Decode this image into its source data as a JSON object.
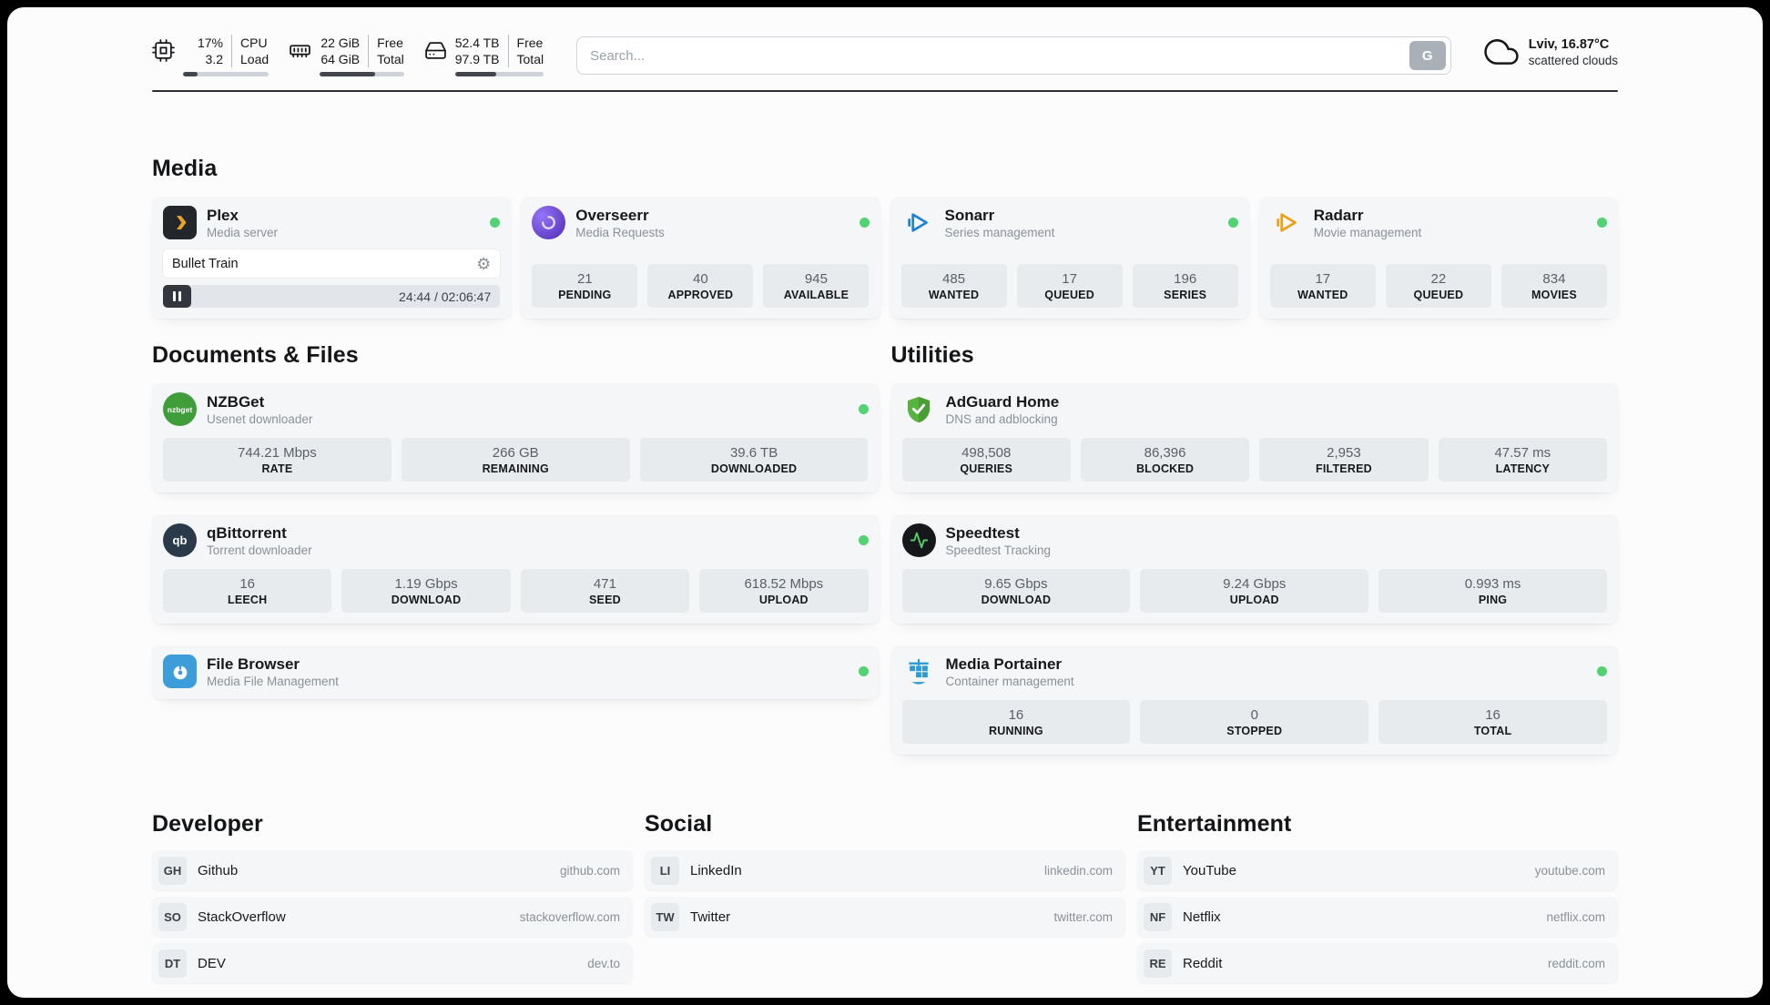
{
  "colors": {
    "status_online": "#52d273",
    "plex_gold": "#e8a624",
    "overseerr_purple": "#6741d9",
    "sonarr_blue": "#1e81d3",
    "radarr_amber": "#eda215",
    "nzbget_green": "#3f9e3a",
    "filebrowser_blue": "#3d9ddb",
    "adguard_green": "#57b33e",
    "speedtest_pulse": "#51cf66",
    "portainer_blue": "#2d9bd8"
  },
  "icons": {
    "gear_glyph": "⚙",
    "nzbget_icon_text": "nzbget",
    "qbittorrent_icon_text": "qb"
  },
  "topbar": {
    "cpu": {
      "value_top": "17%",
      "value_bottom": "3.2",
      "label_top": "CPU",
      "label_bottom": "Load",
      "progress_pct": 17
    },
    "memory": {
      "value_top": "22 GiB",
      "value_bottom": "64 GiB",
      "label_top": "Free",
      "label_bottom": "Total",
      "progress_pct": 66
    },
    "disk": {
      "value_top": "52.4 TB",
      "value_bottom": "97.9 TB",
      "label_top": "Free",
      "label_bottom": "Total",
      "progress_pct": 47
    },
    "search": {
      "placeholder": "Search...",
      "engine_label": "G"
    },
    "weather": {
      "location_temp": "Lviv, 16.87°C",
      "condition": "scattered clouds"
    }
  },
  "sections": {
    "media": {
      "title": "Media",
      "apps": [
        {
          "name": "Plex",
          "desc": "Media server",
          "status": "online",
          "now_playing": {
            "title": "Bullet Train",
            "time": "24:44 / 02:06:47"
          }
        },
        {
          "name": "Overseerr",
          "desc": "Media Requests",
          "status": "online",
          "stats": [
            {
              "value": "21",
              "label": "PENDING"
            },
            {
              "value": "40",
              "label": "APPROVED"
            },
            {
              "value": "945",
              "label": "AVAILABLE"
            }
          ]
        },
        {
          "name": "Sonarr",
          "desc": "Series management",
          "status": "online",
          "stats": [
            {
              "value": "485",
              "label": "WANTED"
            },
            {
              "value": "17",
              "label": "QUEUED"
            },
            {
              "value": "196",
              "label": "SERIES"
            }
          ]
        },
        {
          "name": "Radarr",
          "desc": "Movie management",
          "status": "online",
          "stats": [
            {
              "value": "17",
              "label": "WANTED"
            },
            {
              "value": "22",
              "label": "QUEUED"
            },
            {
              "value": "834",
              "label": "MOVIES"
            }
          ]
        }
      ]
    },
    "documents": {
      "title": "Documents & Files",
      "apps": [
        {
          "name": "NZBGet",
          "desc": "Usenet downloader",
          "status": "online",
          "stats": [
            {
              "value": "744.21 Mbps",
              "label": "RATE"
            },
            {
              "value": "266 GB",
              "label": "REMAINING"
            },
            {
              "value": "39.6 TB",
              "label": "DOWNLOADED"
            }
          ]
        },
        {
          "name": "qBittorrent",
          "desc": "Torrent downloader",
          "status": "online",
          "stats": [
            {
              "value": "16",
              "label": "LEECH"
            },
            {
              "value": "1.19 Gbps",
              "label": "DOWNLOAD"
            },
            {
              "value": "471",
              "label": "SEED"
            },
            {
              "value": "618.52 Mbps",
              "label": "UPLOAD"
            }
          ]
        },
        {
          "name": "File Browser",
          "desc": "Media File Management",
          "status": "online",
          "stats": []
        }
      ]
    },
    "utilities": {
      "title": "Utilities",
      "apps": [
        {
          "name": "AdGuard Home",
          "desc": "DNS and adblocking",
          "stats": [
            {
              "value": "498,508",
              "label": "QUERIES"
            },
            {
              "value": "86,396",
              "label": "BLOCKED"
            },
            {
              "value": "2,953",
              "label": "FILTERED"
            },
            {
              "value": "47.57 ms",
              "label": "LATENCY"
            }
          ]
        },
        {
          "name": "Speedtest",
          "desc": "Speedtest Tracking",
          "stats": [
            {
              "value": "9.65 Gbps",
              "label": "DOWNLOAD"
            },
            {
              "value": "9.24 Gbps",
              "label": "UPLOAD"
            },
            {
              "value": "0.993 ms",
              "label": "PING"
            }
          ]
        },
        {
          "name": "Media Portainer",
          "desc": "Container management",
          "status": "online",
          "stats": [
            {
              "value": "16",
              "label": "RUNNING"
            },
            {
              "value": "0",
              "label": "STOPPED"
            },
            {
              "value": "16",
              "label": "TOTAL"
            }
          ]
        }
      ]
    },
    "bookmarks": [
      {
        "title": "Developer",
        "items": [
          {
            "abbrev": "GH",
            "name": "Github",
            "url": "github.com"
          },
          {
            "abbrev": "SO",
            "name": "StackOverflow",
            "url": "stackoverflow.com"
          },
          {
            "abbrev": "DT",
            "name": "DEV",
            "url": "dev.to"
          }
        ]
      },
      {
        "title": "Social",
        "items": [
          {
            "abbrev": "LI",
            "name": "LinkedIn",
            "url": "linkedin.com"
          },
          {
            "abbrev": "TW",
            "name": "Twitter",
            "url": "twitter.com"
          }
        ]
      },
      {
        "title": "Entertainment",
        "items": [
          {
            "abbrev": "YT",
            "name": "YouTube",
            "url": "youtube.com"
          },
          {
            "abbrev": "NF",
            "name": "Netflix",
            "url": "netflix.com"
          },
          {
            "abbrev": "RE",
            "name": "Reddit",
            "url": "reddit.com"
          }
        ]
      }
    ]
  }
}
